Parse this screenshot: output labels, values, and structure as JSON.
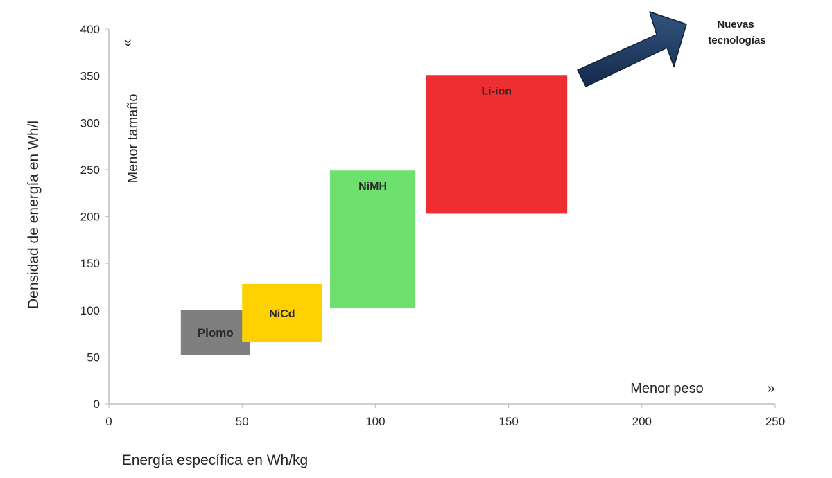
{
  "chart_data": {
    "type": "range-rectangles",
    "title": "",
    "xlabel": "Energía específica en Wh/kg",
    "ylabel": "Densidad de energía en Wh/l",
    "xlim": [
      0,
      250
    ],
    "ylim": [
      0,
      400
    ],
    "xticks": [
      0,
      50,
      100,
      150,
      200,
      250
    ],
    "yticks": [
      0,
      50,
      100,
      150,
      200,
      250,
      300,
      350,
      400
    ],
    "grid": false,
    "series": [
      {
        "name": "Plomo",
        "x": [
          27,
          53
        ],
        "y": [
          52,
          100
        ],
        "color": "#7f7f7f"
      },
      {
        "name": "NiCd",
        "x": [
          50,
          80
        ],
        "y": [
          66,
          128
        ],
        "color": "#ffd100"
      },
      {
        "name": "NiMH",
        "x": [
          83,
          115
        ],
        "y": [
          102,
          249
        ],
        "color": "#6de06d"
      },
      {
        "name": "Li-ion",
        "x": [
          119,
          172
        ],
        "y": [
          203,
          351
        ],
        "color": "#ee2e31"
      }
    ],
    "annotations": {
      "y_direction": {
        "text": "Menor tamaño",
        "marker": "«"
      },
      "x_direction": {
        "text": "Menor peso",
        "marker": "»"
      },
      "arrow": {
        "text_lines": [
          "Nuevas",
          "tecnologías"
        ],
        "color": "#1f3b63"
      }
    }
  }
}
